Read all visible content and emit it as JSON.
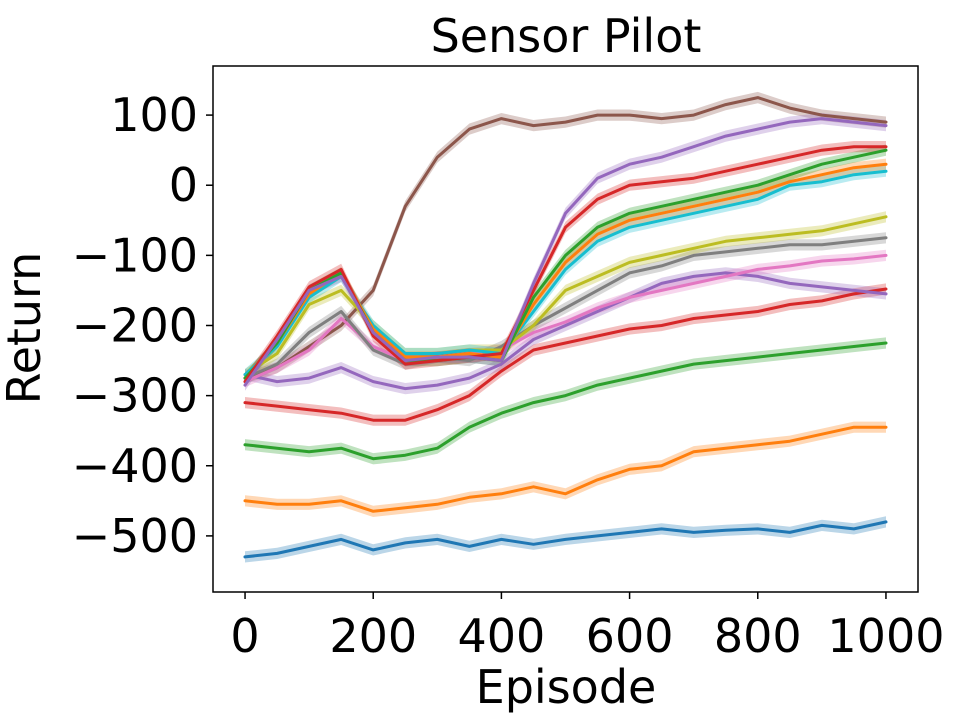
{
  "chart_data": {
    "type": "line",
    "title": "Sensor Pilot",
    "xlabel": "Episode",
    "ylabel": "Return",
    "xlim": [
      -50,
      1050
    ],
    "ylim": [
      -580,
      170
    ],
    "xticks": [
      0,
      200,
      400,
      600,
      800,
      1000
    ],
    "xtick_labels": [
      "0",
      "200",
      "400",
      "600",
      "800",
      "1000"
    ],
    "yticks": [
      -500,
      -400,
      -300,
      -200,
      -100,
      0,
      100
    ],
    "ytick_labels": [
      "−500",
      "−400",
      "−300",
      "−200",
      "−100",
      "0",
      "100"
    ],
    "grid": false,
    "legend": "none",
    "x": [
      0,
      50,
      100,
      150,
      200,
      250,
      300,
      350,
      400,
      450,
      500,
      550,
      600,
      650,
      700,
      750,
      800,
      850,
      900,
      950,
      1000
    ],
    "series": [
      {
        "color": "#1f77b4",
        "band": 8,
        "values": [
          -530,
          -525,
          -515,
          -505,
          -520,
          -510,
          -505,
          -515,
          -505,
          -512,
          -505,
          -500,
          -495,
          -490,
          -495,
          -492,
          -490,
          -495,
          -485,
          -490,
          -480
        ]
      },
      {
        "color": "#ff7f0e",
        "band": 8,
        "values": [
          -450,
          -455,
          -455,
          -450,
          -465,
          -460,
          -455,
          -445,
          -440,
          -430,
          -440,
          -420,
          -405,
          -400,
          -380,
          -375,
          -370,
          -365,
          -355,
          -345,
          -345
        ]
      },
      {
        "color": "#2ca02c",
        "band": 8,
        "values": [
          -370,
          -375,
          -380,
          -375,
          -390,
          -385,
          -375,
          -345,
          -325,
          -310,
          -300,
          -285,
          -275,
          -265,
          -255,
          -250,
          -245,
          -240,
          -235,
          -230,
          -225
        ]
      },
      {
        "color": "#d62728",
        "band": 8,
        "values": [
          -310,
          -315,
          -320,
          -325,
          -335,
          -335,
          -320,
          -300,
          -265,
          -235,
          -225,
          -215,
          -205,
          -200,
          -190,
          -185,
          -180,
          -170,
          -165,
          -155,
          -148
        ]
      },
      {
        "color": "#9467bd",
        "band": 8,
        "values": [
          -270,
          -280,
          -275,
          -260,
          -280,
          -290,
          -285,
          -275,
          -255,
          -220,
          -200,
          -180,
          -160,
          -140,
          -130,
          -125,
          -130,
          -140,
          -145,
          -150,
          -155
        ]
      },
      {
        "color": "#8c564b",
        "band": 8,
        "values": [
          -275,
          -260,
          -230,
          -200,
          -150,
          -30,
          40,
          80,
          95,
          85,
          90,
          100,
          100,
          95,
          100,
          115,
          125,
          110,
          100,
          95,
          90
        ]
      },
      {
        "color": "#e377c2",
        "band": 8,
        "values": [
          -280,
          -260,
          -235,
          -190,
          -230,
          -250,
          -245,
          -240,
          -235,
          -210,
          -195,
          -175,
          -160,
          -150,
          -140,
          -130,
          -120,
          -115,
          -108,
          -105,
          -100
        ]
      },
      {
        "color": "#7f7f7f",
        "band": 8,
        "values": [
          -275,
          -255,
          -210,
          -180,
          -235,
          -255,
          -245,
          -250,
          -230,
          -200,
          -175,
          -150,
          -125,
          -115,
          -100,
          -95,
          -90,
          -85,
          -85,
          -80,
          -75
        ]
      },
      {
        "color": "#bcbd22",
        "band": 8,
        "values": [
          -270,
          -240,
          -170,
          -150,
          -200,
          -240,
          -240,
          -235,
          -235,
          -200,
          -150,
          -130,
          -110,
          -100,
          -90,
          -80,
          -75,
          -70,
          -65,
          -55,
          -45
        ]
      },
      {
        "color": "#17becf",
        "band": 8,
        "values": [
          -270,
          -230,
          -160,
          -130,
          -200,
          -240,
          -240,
          -235,
          -240,
          -180,
          -120,
          -80,
          -60,
          -50,
          -40,
          -30,
          -20,
          0,
          5,
          15,
          20
        ]
      },
      {
        "color": "#ff7f0e",
        "band": 8,
        "values": [
          -275,
          -225,
          -155,
          -125,
          -205,
          -245,
          -245,
          -240,
          -245,
          -170,
          -110,
          -70,
          -50,
          -40,
          -30,
          -20,
          -10,
          5,
          15,
          25,
          30
        ]
      },
      {
        "color": "#2ca02c",
        "band": 8,
        "values": [
          -275,
          -225,
          -150,
          -125,
          -210,
          -250,
          -250,
          -245,
          -250,
          -160,
          -100,
          -60,
          -40,
          -30,
          -20,
          -10,
          0,
          15,
          30,
          40,
          50
        ]
      },
      {
        "color": "#d62728",
        "band": 8,
        "values": [
          -280,
          -215,
          -145,
          -120,
          -215,
          -255,
          -250,
          -245,
          -240,
          -150,
          -60,
          -20,
          0,
          5,
          10,
          20,
          30,
          40,
          50,
          55,
          55
        ]
      },
      {
        "color": "#9467bd",
        "band": 8,
        "values": [
          -285,
          -220,
          -150,
          -130,
          -210,
          -250,
          -245,
          -245,
          -250,
          -140,
          -40,
          10,
          30,
          40,
          55,
          70,
          80,
          90,
          95,
          90,
          85
        ]
      }
    ]
  }
}
